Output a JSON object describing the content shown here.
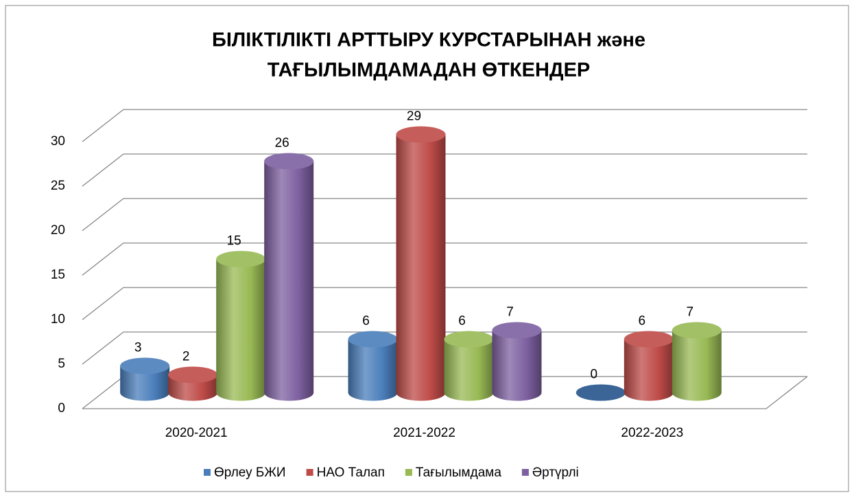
{
  "chart_data": {
    "type": "bar",
    "title": [
      "БІЛІКТІЛІКТІ АРТТЫРУ КУРСТАРЫНАН  жәнe",
      "ТАҒЫЛЫМДАМАДАН ӨТКЕНДЕР"
    ],
    "categories": [
      "2020-2021",
      "2021-2022",
      "2022-2023"
    ],
    "series": [
      {
        "name": "Өрлеу БЖИ",
        "color": "#4a7ebb",
        "values": [
          3,
          6,
          0
        ]
      },
      {
        "name": "НАО Талап",
        "color": "#be4b48",
        "values": [
          2,
          29,
          6
        ]
      },
      {
        "name": "Тағылымдама",
        "color": "#98b954",
        "values": [
          15,
          6,
          7
        ]
      },
      {
        "name": "Әртүрлі",
        "color": "#7d60a0",
        "values": [
          26,
          7,
          null
        ]
      }
    ],
    "ylim": [
      0,
      30
    ],
    "yticks": [
      0,
      5,
      10,
      15,
      20,
      25,
      30
    ],
    "grid": true,
    "legend": "bottom"
  }
}
